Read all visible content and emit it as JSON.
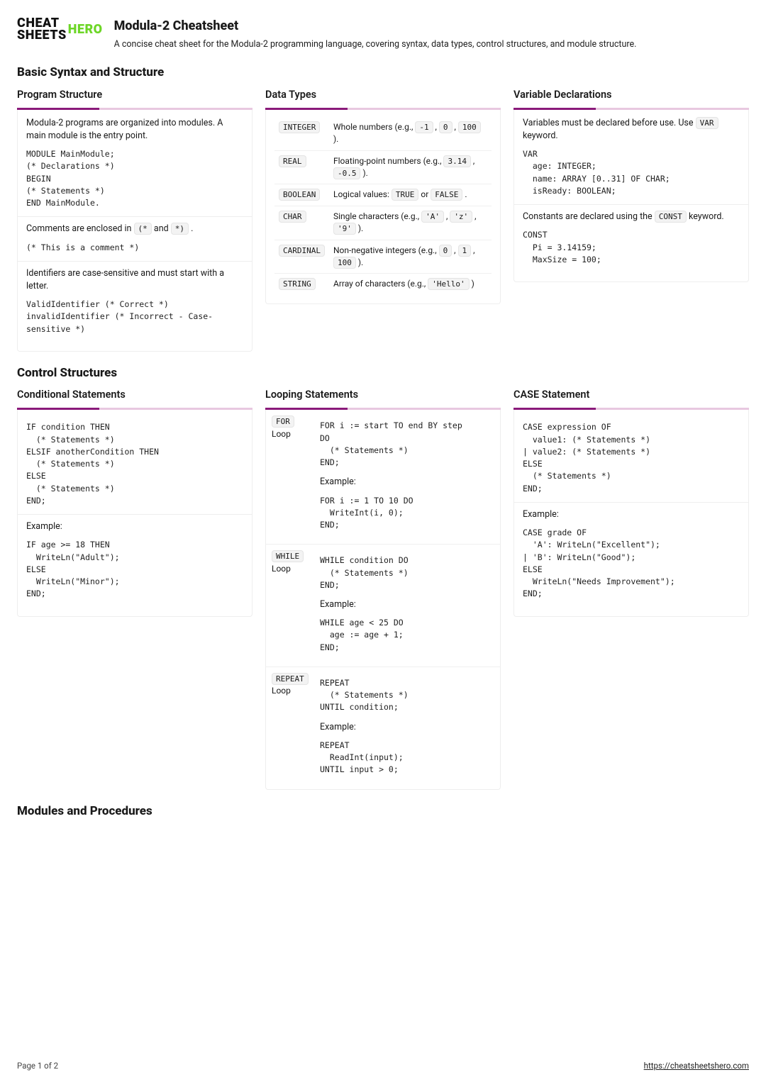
{
  "logo": {
    "left1": "CHEAT",
    "right1": "HERO",
    "left2": "SHEETS"
  },
  "header": {
    "title": "Modula-2 Cheatsheet",
    "subtitle": "A concise cheat sheet for the Modula-2 programming language, covering syntax, data types, control structures, and module structure."
  },
  "sec1": {
    "title": "Basic Syntax and Structure"
  },
  "progStruct": {
    "title": "Program Structure",
    "p1": "Modula-2 programs are organized into modules. A main module is the entry point.",
    "code1": "MODULE MainModule;\n(* Declarations *)\nBEGIN\n(* Statements *)\nEND MainModule.",
    "p2a": "Comments are enclosed in ",
    "p2b": " and ",
    "p2c": " .",
    "openC": "(*",
    "closeC": "*)",
    "code2": "(* This is a comment *)",
    "p3": "Identifiers are case-sensitive and must start with a letter.",
    "code3": "ValidIdentifier (* Correct *)\ninvalidIdentifier (* Incorrect - Case-\nsensitive *)"
  },
  "dataTypes": {
    "title": "Data Types",
    "rows": [
      {
        "k": "INTEGER",
        "pre": "Whole numbers (e.g., ",
        "codes": [
          "-1",
          "0",
          "100"
        ],
        "post": " )."
      },
      {
        "k": "REAL",
        "pre": "Floating-point numbers (e.g., ",
        "codes": [
          "3.14",
          "-0.5"
        ],
        "post": " )."
      },
      {
        "k": "BOOLEAN",
        "pre": "Logical values: ",
        "codes": [
          "TRUE",
          "FALSE"
        ],
        "post": " .",
        "joiner": " or "
      },
      {
        "k": "CHAR",
        "pre": "Single characters (e.g., ",
        "codes": [
          "'A'",
          "'z'",
          "'9'"
        ],
        "post": " )."
      },
      {
        "k": "CARDINAL",
        "pre": "Non-negative integers (e.g., ",
        "codes": [
          "0",
          "1",
          "100"
        ],
        "post": " )."
      },
      {
        "k": "STRING",
        "pre": "Array of characters (e.g., ",
        "codes": [
          "'Hello'"
        ],
        "post": " )"
      }
    ]
  },
  "varDecl": {
    "title": "Variable Declarations",
    "p1a": "Variables must be declared before use. Use ",
    "p1code": "VAR",
    "p1b": " keyword.",
    "code1": "VAR\n  age: INTEGER;\n  name: ARRAY [0..31] OF CHAR;\n  isReady: BOOLEAN;",
    "p2a": "Constants are declared using the ",
    "p2code": "CONST",
    "p2b": " keyword.",
    "code2": "CONST\n  Pi = 3.14159;\n  MaxSize = 100;"
  },
  "sec2": {
    "title": "Control Structures"
  },
  "cond": {
    "title": "Conditional Statements",
    "code1": "IF condition THEN\n  (* Statements *)\nELSIF anotherCondition THEN\n  (* Statements *)\nELSE\n  (* Statements *)\nEND;",
    "exLabel": "Example:",
    "code2": "IF age >= 18 THEN\n  WriteLn(\"Adult\");\nELSE\n  WriteLn(\"Minor\");\nEND;"
  },
  "loops": {
    "title": "Looping Statements",
    "for": {
      "labelCode": "FOR",
      "labelText": " Loop",
      "code1": "FOR i := start TO end BY step\nDO\n  (* Statements *)\nEND;",
      "exLabel": "Example:",
      "code2": "FOR i := 1 TO 10 DO\n  WriteInt(i, 0);\nEND;"
    },
    "while": {
      "labelCode": "WHILE",
      "labelText": " Loop",
      "code1": "WHILE condition DO\n  (* Statements *)\nEND;",
      "exLabel": "Example:",
      "code2": "WHILE age < 25 DO\n  age := age + 1;\nEND;"
    },
    "repeat": {
      "labelCode": "REPEAT",
      "labelText": " Loop",
      "code1": "REPEAT\n  (* Statements *)\nUNTIL condition;",
      "exLabel": "Example:",
      "code2": "REPEAT\n  ReadInt(input);\nUNTIL input > 0;"
    }
  },
  "caseStmt": {
    "title": "CASE Statement",
    "code1": "CASE expression OF\n  value1: (* Statements *)\n| value2: (* Statements *)\nELSE\n  (* Statements *)\nEND;",
    "exLabel": "Example:",
    "code2": "CASE grade OF\n  'A': WriteLn(\"Excellent\");\n| 'B': WriteLn(\"Good\");\nELSE\n  WriteLn(\"Needs Improvement\");\nEND;"
  },
  "sec3": {
    "title": "Modules and Procedures"
  },
  "footer": {
    "page": "Page 1 of 2",
    "url": "https://cheatsheetshero.com"
  }
}
